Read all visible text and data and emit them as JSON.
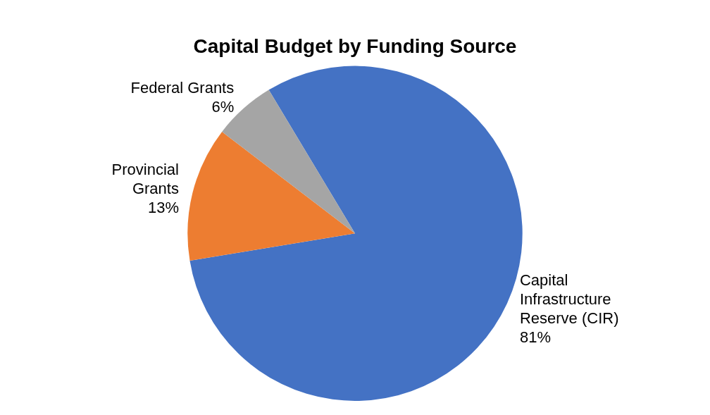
{
  "chart_data": {
    "type": "pie",
    "title": "Capital Budget by Funding Source",
    "categories": [
      "Capital Infrastructure Reserve (CIR)",
      "Provincial Grants",
      "Federal Grants"
    ],
    "values": [
      81,
      13,
      6
    ],
    "colors": [
      "#4472c4",
      "#ed7d31",
      "#a5a5a5"
    ],
    "value_labels": [
      "81%",
      "13%",
      "6%"
    ]
  }
}
